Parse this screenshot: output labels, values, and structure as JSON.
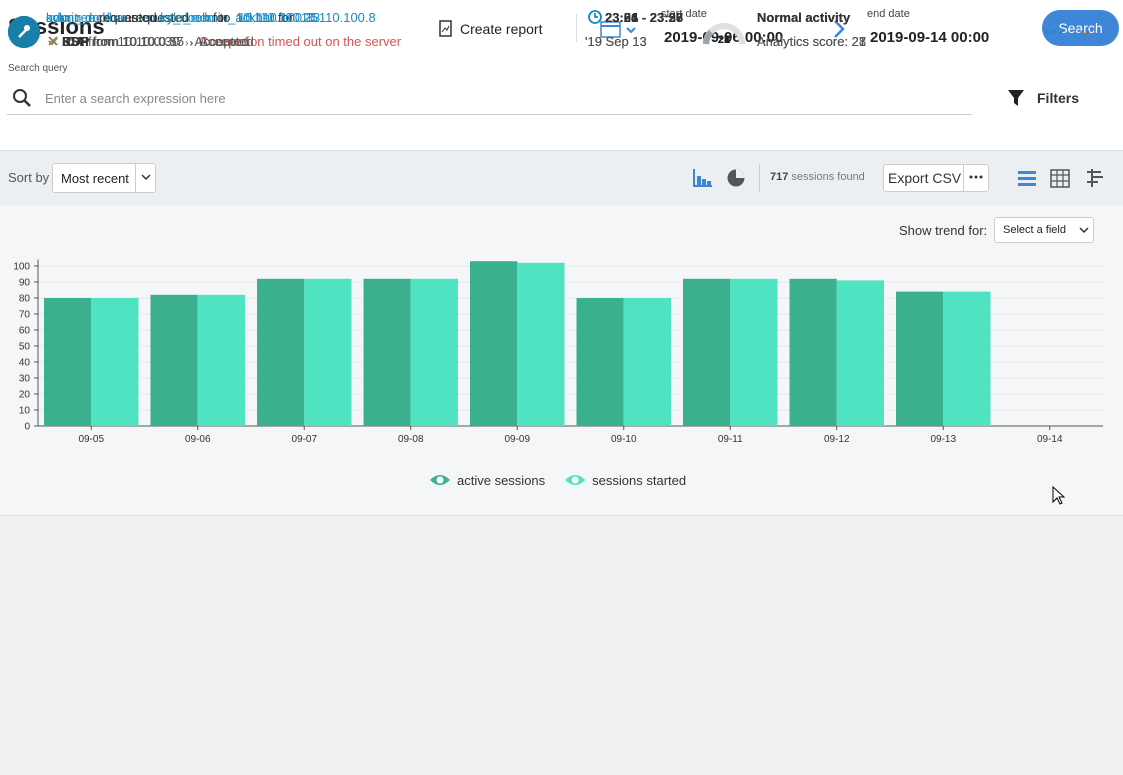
{
  "header": {
    "title": "Sessions",
    "create_report": "Create report",
    "start_label": "start date",
    "start_value": "2019-09-06 00:00",
    "end_label": "end date",
    "end_value": "2019-09-14 00:00",
    "search_button": "Search"
  },
  "search": {
    "label": "Search query",
    "placeholder": "Enter a search expression here",
    "filters": "Filters"
  },
  "toolbar": {
    "sort_label": "Sort by",
    "sort_value": "Most recent",
    "count": "717",
    "count_suffix": "sessions found",
    "export": "Export CSV"
  },
  "trend": {
    "label": "Show trend for:",
    "select": "Select a field"
  },
  "chart": {
    "type": "bar",
    "categories": [
      "09-05",
      "09-06",
      "09-07",
      "09-08",
      "09-09",
      "09-10",
      "09-11",
      "09-12",
      "09-13",
      "09-14"
    ],
    "series": [
      {
        "name": "active sessions",
        "color": "#3bb08f",
        "values": [
          80,
          82,
          92,
          92,
          103,
          80,
          92,
          92,
          84,
          null
        ]
      },
      {
        "name": "sessions started",
        "color": "#50e3c2",
        "values": [
          80,
          82,
          92,
          92,
          102,
          80,
          92,
          91,
          84,
          null
        ]
      }
    ],
    "ylim": [
      0,
      104
    ],
    "yticks": [
      0,
      10,
      20,
      30,
      40,
      50,
      60,
      70,
      80,
      90,
      100
    ],
    "grid": true
  },
  "sessions": [
    {
      "user": "count_dooku",
      "relation": "as",
      "target": "count_dooku",
      "preposition": "to",
      "host": "10.110.100.33",
      "result_ok": false,
      "protocol": "SSH",
      "source": "from 10.10.0.37",
      "result": "Connection timed out on the server",
      "time": "23:56 - 23:56",
      "date": "'19 Sep 13",
      "score": "21",
      "activity": "Normal activity",
      "analytics": "Analytics score: 21"
    },
    {
      "user": "admin_ackbar",
      "relation": "requested",
      "target": "admin_ackbar",
      "preposition": "for",
      "host": "10.110.100.8",
      "result_ok": true,
      "protocol": "ICA",
      "source": "from 10.10.0.30",
      "result": "Accepted",
      "time": "23:04 - 23:28",
      "date": "'19 Sep 13",
      "score": "27",
      "activity": "Normal activity",
      "analytics": "Analytics score: 27"
    },
    {
      "user": "kylo_ren",
      "relation": "requested",
      "target": "kylo_ren",
      "preposition": "for",
      "host": "10.110.100.25",
      "result_ok": true,
      "protocol": "RDP",
      "source": "from 10.10.0.55",
      "result": "Accepted",
      "time": "23:21 - 23:27",
      "date": "'19 Sep 13",
      "score": "28",
      "activity": "Normal activity",
      "analytics": "Analytics score: 28"
    }
  ]
}
